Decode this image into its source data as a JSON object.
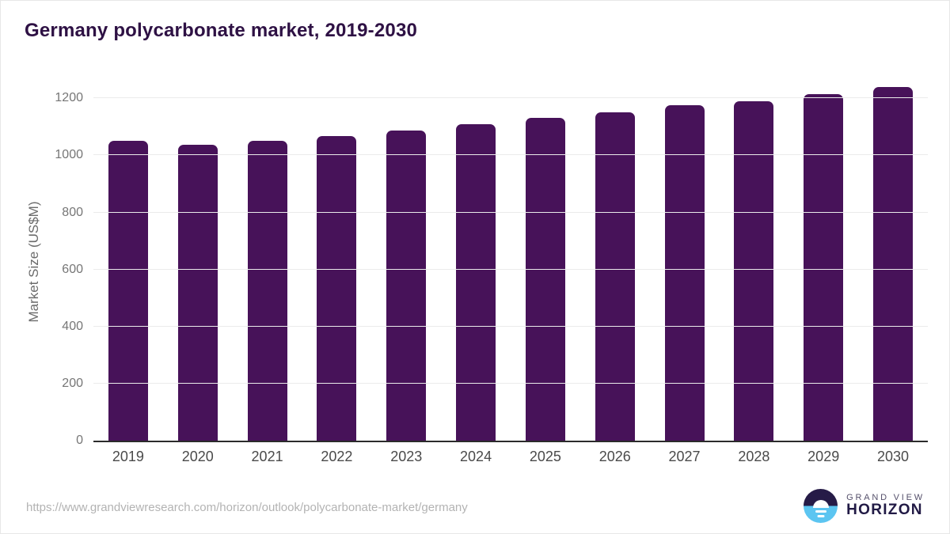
{
  "page": {
    "title": "Germany polycarbonate market, 2019-2030"
  },
  "chart_data": {
    "type": "bar",
    "title": "Germany polycarbonate market, 2019-2030",
    "categories": [
      "2019",
      "2020",
      "2021",
      "2022",
      "2023",
      "2024",
      "2025",
      "2026",
      "2027",
      "2028",
      "2029",
      "2030"
    ],
    "values": [
      1052,
      1036,
      1050,
      1068,
      1087,
      1110,
      1130,
      1152,
      1175,
      1190,
      1214,
      1239
    ],
    "xlabel": "",
    "ylabel": "Market Size (US$M)",
    "yticks": [
      0,
      200,
      400,
      600,
      800,
      1000,
      1200
    ],
    "ylim": [
      0,
      1270
    ],
    "grid": true,
    "legend": false,
    "bar_color": "#471259"
  },
  "colors": {
    "title": "#2e1144",
    "bar": "#471259",
    "gridline": "#ebebeb",
    "axis_line": "#2b2b2b",
    "y_tick_text": "#767676",
    "x_tick_text": "#4a4a4a",
    "url_text": "#b3b3b3",
    "logo_dark": "#261b47",
    "logo_blue": "#5cc5f1"
  },
  "footer": {
    "source_url": "https://www.grandviewresearch.com/horizon/outlook/polycarbonate-market/germany",
    "logo": {
      "line1": "GRAND VIEW",
      "line2": "HORIZON"
    }
  }
}
